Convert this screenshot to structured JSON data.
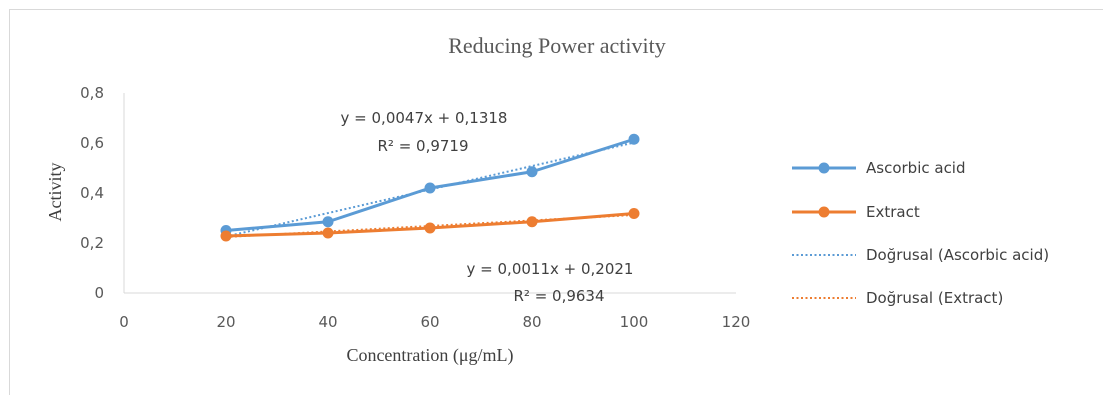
{
  "chart_data": {
    "type": "line",
    "title": "Reducing  Power activity",
    "xlabel": "Concentration (μg/mL)",
    "ylabel": "Activity",
    "xlim": [
      0,
      120
    ],
    "ylim": [
      0,
      0.8
    ],
    "x_ticks": [
      0,
      20,
      40,
      60,
      80,
      100,
      120
    ],
    "y_ticks": [
      0,
      0.2,
      0.4,
      0.6,
      0.8
    ],
    "x_tick_labels": [
      "0",
      "20",
      "40",
      "60",
      "80",
      "100",
      "120"
    ],
    "y_tick_labels": [
      "0",
      "0,2",
      "0,4",
      "0,6",
      "0,8"
    ],
    "grid": false,
    "legend_position": "right",
    "series": [
      {
        "name": "Ascorbic acid",
        "color": "#5b9bd5",
        "x": [
          20,
          40,
          60,
          80,
          100
        ],
        "values": [
          0.25,
          0.285,
          0.42,
          0.485,
          0.615
        ]
      },
      {
        "name": "Extract",
        "color": "#ed7d31",
        "x": [
          20,
          40,
          60,
          80,
          100
        ],
        "values": [
          0.228,
          0.24,
          0.26,
          0.285,
          0.318
        ]
      }
    ],
    "trendlines": [
      {
        "name": "Doğrusal (Ascorbic acid)",
        "color": "#5b9bd5",
        "slope": 0.0047,
        "intercept": 0.1318,
        "equation": "y = 0,0047x + 0,1318",
        "r2": "R² = 0,9719"
      },
      {
        "name": "Doğrusal (Extract)",
        "color": "#ed7d31",
        "slope": 0.0011,
        "intercept": 0.2021,
        "equation": "y = 0,0011x + 0,2021",
        "r2": "R² = 0,9634"
      }
    ]
  }
}
